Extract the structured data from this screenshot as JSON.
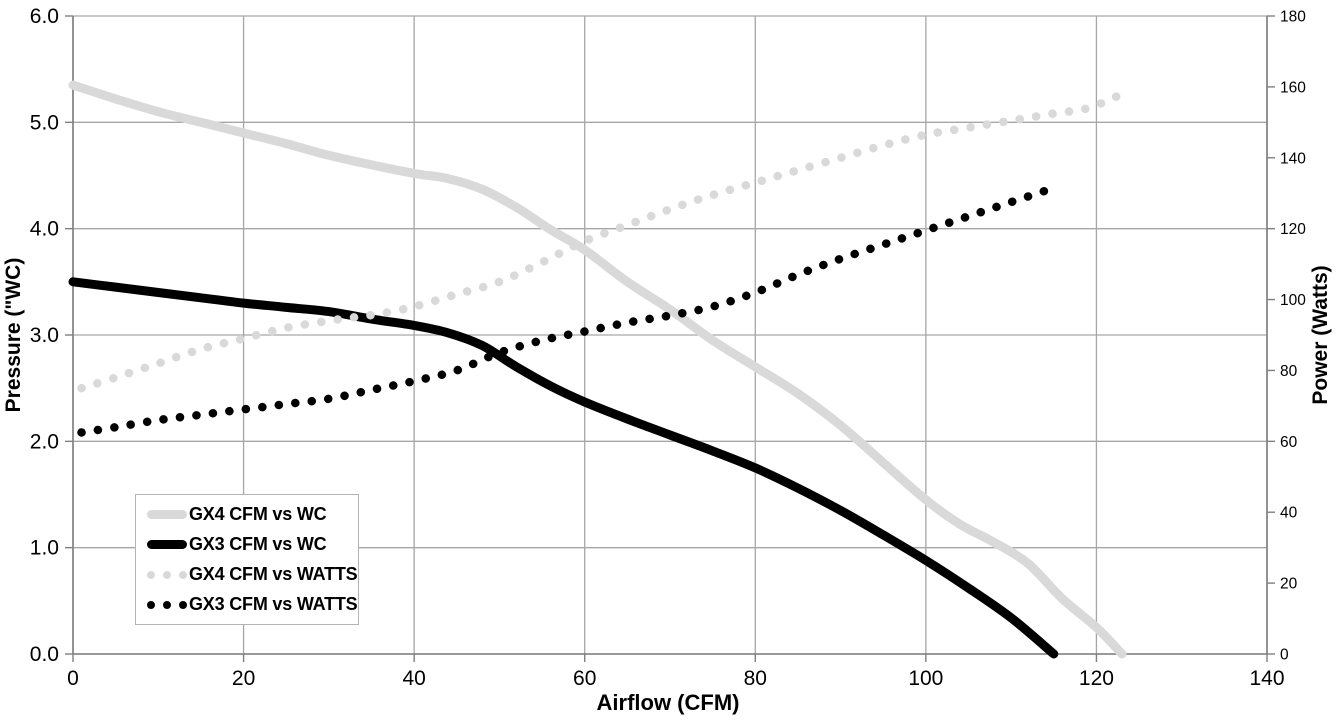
{
  "colors": {
    "background": "#ffffff",
    "gridline": "#a6a6a6",
    "axis_line": "#7f7f7f",
    "label_text": "#000000",
    "legend_border": "#b3b3b3",
    "series_gray": "#d9d9d9",
    "series_black": "#000000"
  },
  "chart_data": {
    "type": "line",
    "title": "",
    "xlabel": "Airflow (CFM)",
    "ylabel_left": "Pressure (\"WC)",
    "ylabel_right": "Power (Watts)",
    "x_range": [
      0,
      140
    ],
    "y_left_range": [
      0,
      6
    ],
    "y_right_range": [
      0,
      180
    ],
    "x_ticks": [
      0,
      20,
      40,
      60,
      80,
      100,
      120,
      140
    ],
    "y_left_tick_labels": [
      "6.0",
      "5.0",
      "4.0",
      "3.0",
      "2.0",
      "1.0",
      "0.0"
    ],
    "y_right_ticks": [
      180,
      160,
      140,
      120,
      100,
      80,
      60,
      40,
      20,
      0
    ],
    "grid": "horizontal every 1.0 \"WC (30 W), vertical every 20 CFM",
    "legend_position": "inside lower-left",
    "series": [
      {
        "name": "GX4 CFM vs WC",
        "axis": "left",
        "style": "solid",
        "color": "#d9d9d9",
        "points": [
          [
            0,
            5.35
          ],
          [
            5,
            5.22
          ],
          [
            10,
            5.1
          ],
          [
            15,
            5.0
          ],
          [
            20,
            4.9
          ],
          [
            25,
            4.8
          ],
          [
            30,
            4.69
          ],
          [
            35,
            4.6
          ],
          [
            40,
            4.52
          ],
          [
            44,
            4.47
          ],
          [
            48,
            4.37
          ],
          [
            52,
            4.2
          ],
          [
            56,
            3.99
          ],
          [
            60,
            3.8
          ],
          [
            65,
            3.5
          ],
          [
            70,
            3.24
          ],
          [
            75,
            2.95
          ],
          [
            80,
            2.7
          ],
          [
            85,
            2.45
          ],
          [
            90,
            2.15
          ],
          [
            95,
            1.8
          ],
          [
            100,
            1.45
          ],
          [
            104,
            1.22
          ],
          [
            108,
            1.05
          ],
          [
            112,
            0.85
          ],
          [
            116,
            0.52
          ],
          [
            120,
            0.25
          ],
          [
            123,
            0.0
          ]
        ]
      },
      {
        "name": "GX3 CFM vs WC",
        "axis": "left",
        "style": "solid",
        "color": "#000000",
        "points": [
          [
            0,
            3.5
          ],
          [
            5,
            3.45
          ],
          [
            10,
            3.4
          ],
          [
            15,
            3.35
          ],
          [
            20,
            3.3
          ],
          [
            25,
            3.26
          ],
          [
            30,
            3.22
          ],
          [
            35,
            3.15
          ],
          [
            40,
            3.09
          ],
          [
            44,
            3.02
          ],
          [
            48,
            2.9
          ],
          [
            52,
            2.7
          ],
          [
            56,
            2.52
          ],
          [
            60,
            2.37
          ],
          [
            65,
            2.21
          ],
          [
            70,
            2.06
          ],
          [
            75,
            1.91
          ],
          [
            80,
            1.75
          ],
          [
            85,
            1.56
          ],
          [
            90,
            1.35
          ],
          [
            95,
            1.12
          ],
          [
            100,
            0.88
          ],
          [
            105,
            0.62
          ],
          [
            110,
            0.34
          ],
          [
            115,
            0.0
          ]
        ]
      },
      {
        "name": "GX4 CFM vs WATTS",
        "axis": "right",
        "style": "dotted",
        "color": "#d9d9d9",
        "points": [
          [
            1,
            75
          ],
          [
            5,
            78
          ],
          [
            10,
            82
          ],
          [
            15,
            86
          ],
          [
            20,
            89
          ],
          [
            25,
            92
          ],
          [
            30,
            94
          ],
          [
            33,
            95
          ],
          [
            36,
            96
          ],
          [
            40,
            98
          ],
          [
            45,
            101.5
          ],
          [
            50,
            105
          ],
          [
            55,
            110.5
          ],
          [
            60,
            116.5
          ],
          [
            65,
            121
          ],
          [
            70,
            125.5
          ],
          [
            75,
            129.5
          ],
          [
            80,
            133
          ],
          [
            85,
            136.5
          ],
          [
            90,
            140
          ],
          [
            95,
            143.5
          ],
          [
            100,
            146.5
          ],
          [
            105,
            148.5
          ],
          [
            110,
            150.5
          ],
          [
            115,
            152.5
          ],
          [
            119,
            154
          ],
          [
            123,
            158
          ]
        ]
      },
      {
        "name": "GX3 CFM vs WATTS",
        "axis": "right",
        "style": "dotted",
        "color": "#000000",
        "points": [
          [
            1,
            62.5
          ],
          [
            5,
            64
          ],
          [
            10,
            66
          ],
          [
            15,
            67.5
          ],
          [
            20,
            69
          ],
          [
            25,
            70.5
          ],
          [
            30,
            72
          ],
          [
            35,
            74.5
          ],
          [
            40,
            77
          ],
          [
            45,
            80
          ],
          [
            50,
            85
          ],
          [
            55,
            88.5
          ],
          [
            60,
            91
          ],
          [
            65,
            93.5
          ],
          [
            70,
            95.5
          ],
          [
            75,
            98
          ],
          [
            80,
            102
          ],
          [
            85,
            107
          ],
          [
            90,
            111.5
          ],
          [
            95,
            115.5
          ],
          [
            100,
            119.5
          ],
          [
            105,
            123.5
          ],
          [
            110,
            127.5
          ],
          [
            115,
            131.5
          ]
        ]
      }
    ]
  }
}
